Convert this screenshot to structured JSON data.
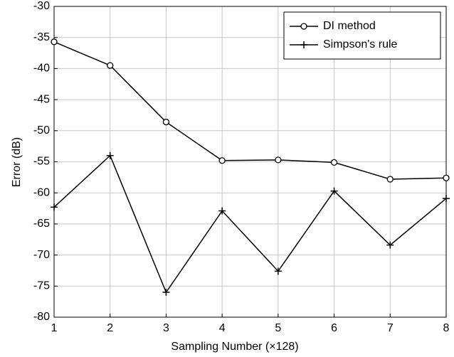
{
  "chart_data": {
    "type": "line",
    "xlabel": "Sampling Number (×128)",
    "ylabel": "Error (dB)",
    "x": [
      1,
      2,
      3,
      4,
      5,
      6,
      7,
      8
    ],
    "series": [
      {
        "name": "DI method",
        "color": "#000000",
        "marker": "circle",
        "values": [
          -35.7,
          -39.5,
          -48.6,
          -54.8,
          -54.7,
          -55.1,
          -57.8,
          -57.6
        ]
      },
      {
        "name": "Simpson's rule",
        "color": "#000000",
        "marker": "plus",
        "values": [
          -62.3,
          -54.0,
          -76.0,
          -62.9,
          -72.6,
          -59.7,
          -68.4,
          -60.9
        ]
      }
    ],
    "xlim": [
      1,
      8
    ],
    "xticks": [
      1,
      2,
      3,
      4,
      5,
      6,
      7,
      8
    ],
    "ylim": [
      -80,
      -30
    ],
    "yticks": [
      -80,
      -75,
      -70,
      -65,
      -60,
      -55,
      -50,
      -45,
      -40,
      -35,
      -30
    ],
    "grid": true,
    "legend": "upper right"
  }
}
